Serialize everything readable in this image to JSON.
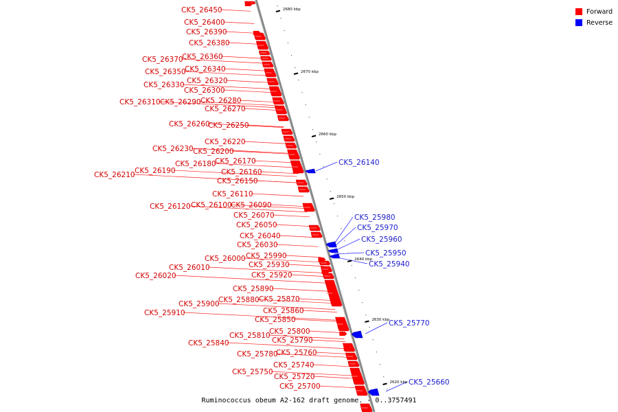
{
  "caption": "Ruminococcus obeum A2-162 draft genome. - 0..3757491",
  "legend": [
    {
      "label": "Forward",
      "color": "#ff0000"
    },
    {
      "label": "Reverse",
      "color": "#0000ff"
    }
  ],
  "colors": {
    "forward": "#ff0000",
    "reverse": "#0000ff",
    "forward_label": "#d40000",
    "reverse_label": "#1a1acc"
  },
  "ticks": [
    "2680 kbp",
    "2670 kbp",
    "2660 kbp",
    "2650 kbp",
    "2640 kbp",
    "2630 kbp",
    "2620 kbp"
  ],
  "forward_labels": [
    "CK5_26450",
    "CK5_26400",
    "CK5_26390",
    "CK5_26380",
    "CK5_26370",
    "CK5_26360",
    "CK5_26350",
    "CK5_26340",
    "CK5_26330",
    "CK5_26320",
    "CK5_26300",
    "CK5_26310",
    "CK5_26290",
    "CK5_26280",
    "CK5_26270",
    "CK5_26260",
    "CK5_26250",
    "CK5_26220",
    "CK5_26230",
    "CK5_26200",
    "CK5_26170",
    "CK5_26180",
    "CK5_26190",
    "CK5_26210",
    "CK5_26160",
    "CK5_26150",
    "CK5_26110",
    "CK5_26120",
    "CK5_26100",
    "CK5_26090",
    "CK5_26070",
    "CK5_26050",
    "CK5_26040",
    "CK5_26030",
    "CK5_26000",
    "CK5_25990",
    "CK5_26010",
    "CK5_25930",
    "CK5_26020",
    "CK5_25920",
    "CK5_25890",
    "CK5_25880",
    "CK5_25870",
    "CK5_25900",
    "CK5_25910",
    "CK5_25860",
    "CK5_25850",
    "CK5_25800",
    "CK5_25810",
    "CK5_25790",
    "CK5_25840",
    "CK5_25780",
    "CK5_25760",
    "CK5_25740",
    "CK5_25750",
    "CK5_25720",
    "CK5_25700"
  ],
  "reverse_labels": [
    "CK5_26140",
    "CK5_25980",
    "CK5_25970",
    "CK5_25960",
    "CK5_25950",
    "CK5_25940",
    "CK5_25770",
    "CK5_25660"
  ]
}
